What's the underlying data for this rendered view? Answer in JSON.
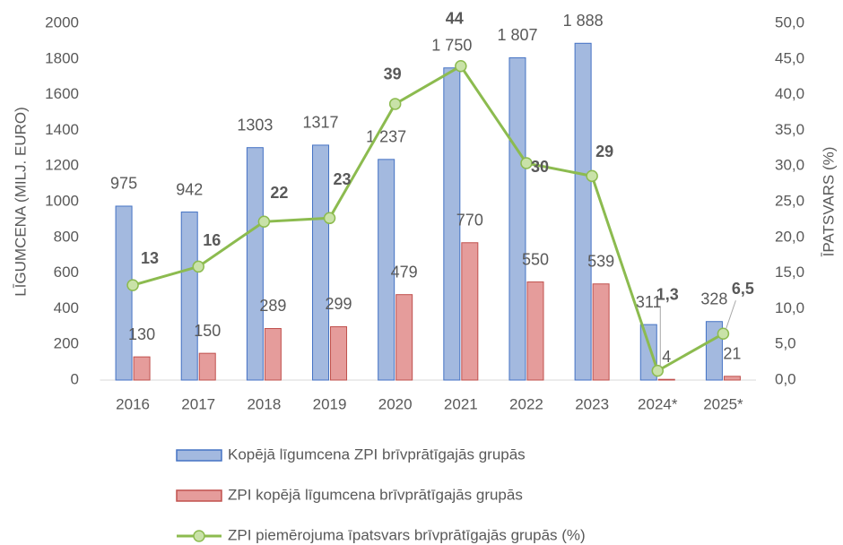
{
  "chart_data": {
    "type": "bar_line",
    "categories": [
      "2016",
      "2017",
      "2018",
      "2019",
      "2020",
      "2021",
      "2022",
      "2023",
      "2024*",
      "2025*"
    ],
    "series": [
      {
        "name": "Kopējā līgumcena ZPI brīvprātīgajās grupās",
        "color": "#4472c4",
        "fill": "#a3b9df",
        "values": [
          975,
          942,
          1303,
          1317,
          1237,
          1750,
          1807,
          1888,
          311,
          328
        ],
        "value_labels": [
          "975",
          "942",
          "1303",
          "1317",
          "1 237",
          "1 750",
          "1 807",
          "1 888",
          "311",
          "328"
        ]
      },
      {
        "name": "ZPI kopējā līgumcena brīvprātīgajās grupās",
        "color": "#c0504d",
        "fill": "#e59c9b",
        "values": [
          130,
          150,
          289,
          299,
          479,
          770,
          550,
          539,
          4,
          21
        ]
      },
      {
        "name": "ZPI piemērojuma īpatsvars brīvprātīgajās grupās (%)",
        "color": "#8cbb4f",
        "fill": "#c9e2a8",
        "axis": "y2",
        "values": [
          13.3,
          15.9,
          22.2,
          22.7,
          38.7,
          44.0,
          30.4,
          28.6,
          1.3,
          6.5
        ],
        "value_labels": [
          "13",
          "16",
          "22",
          "23",
          "39",
          "44",
          "30",
          "29",
          "1,3",
          "6,5"
        ]
      }
    ],
    "y_label": "LĪGUMCENA (MILJ. EURO)",
    "y2_label": "ĪPATSVARS (%)",
    "ylim": [
      0,
      2000
    ],
    "yticks": [
      0,
      200,
      400,
      600,
      800,
      1000,
      1200,
      1400,
      1600,
      1800,
      2000
    ],
    "y2lim": [
      0,
      50
    ],
    "y2ticks": [
      {
        "value": 0,
        "label": "0,0"
      },
      {
        "value": 5,
        "label": "5,0"
      },
      {
        "value": 10,
        "label": "10,0"
      },
      {
        "value": 15,
        "label": "15,0"
      },
      {
        "value": 20,
        "label": "20,0"
      },
      {
        "value": 25,
        "label": "25,0"
      },
      {
        "value": 30,
        "label": "30,0"
      },
      {
        "value": 35,
        "label": "35,0"
      },
      {
        "value": 40,
        "label": "40,0"
      },
      {
        "value": 45,
        "label": "45,0"
      },
      {
        "value": 50,
        "label": "50,0"
      }
    ],
    "legend": "bottom"
  }
}
